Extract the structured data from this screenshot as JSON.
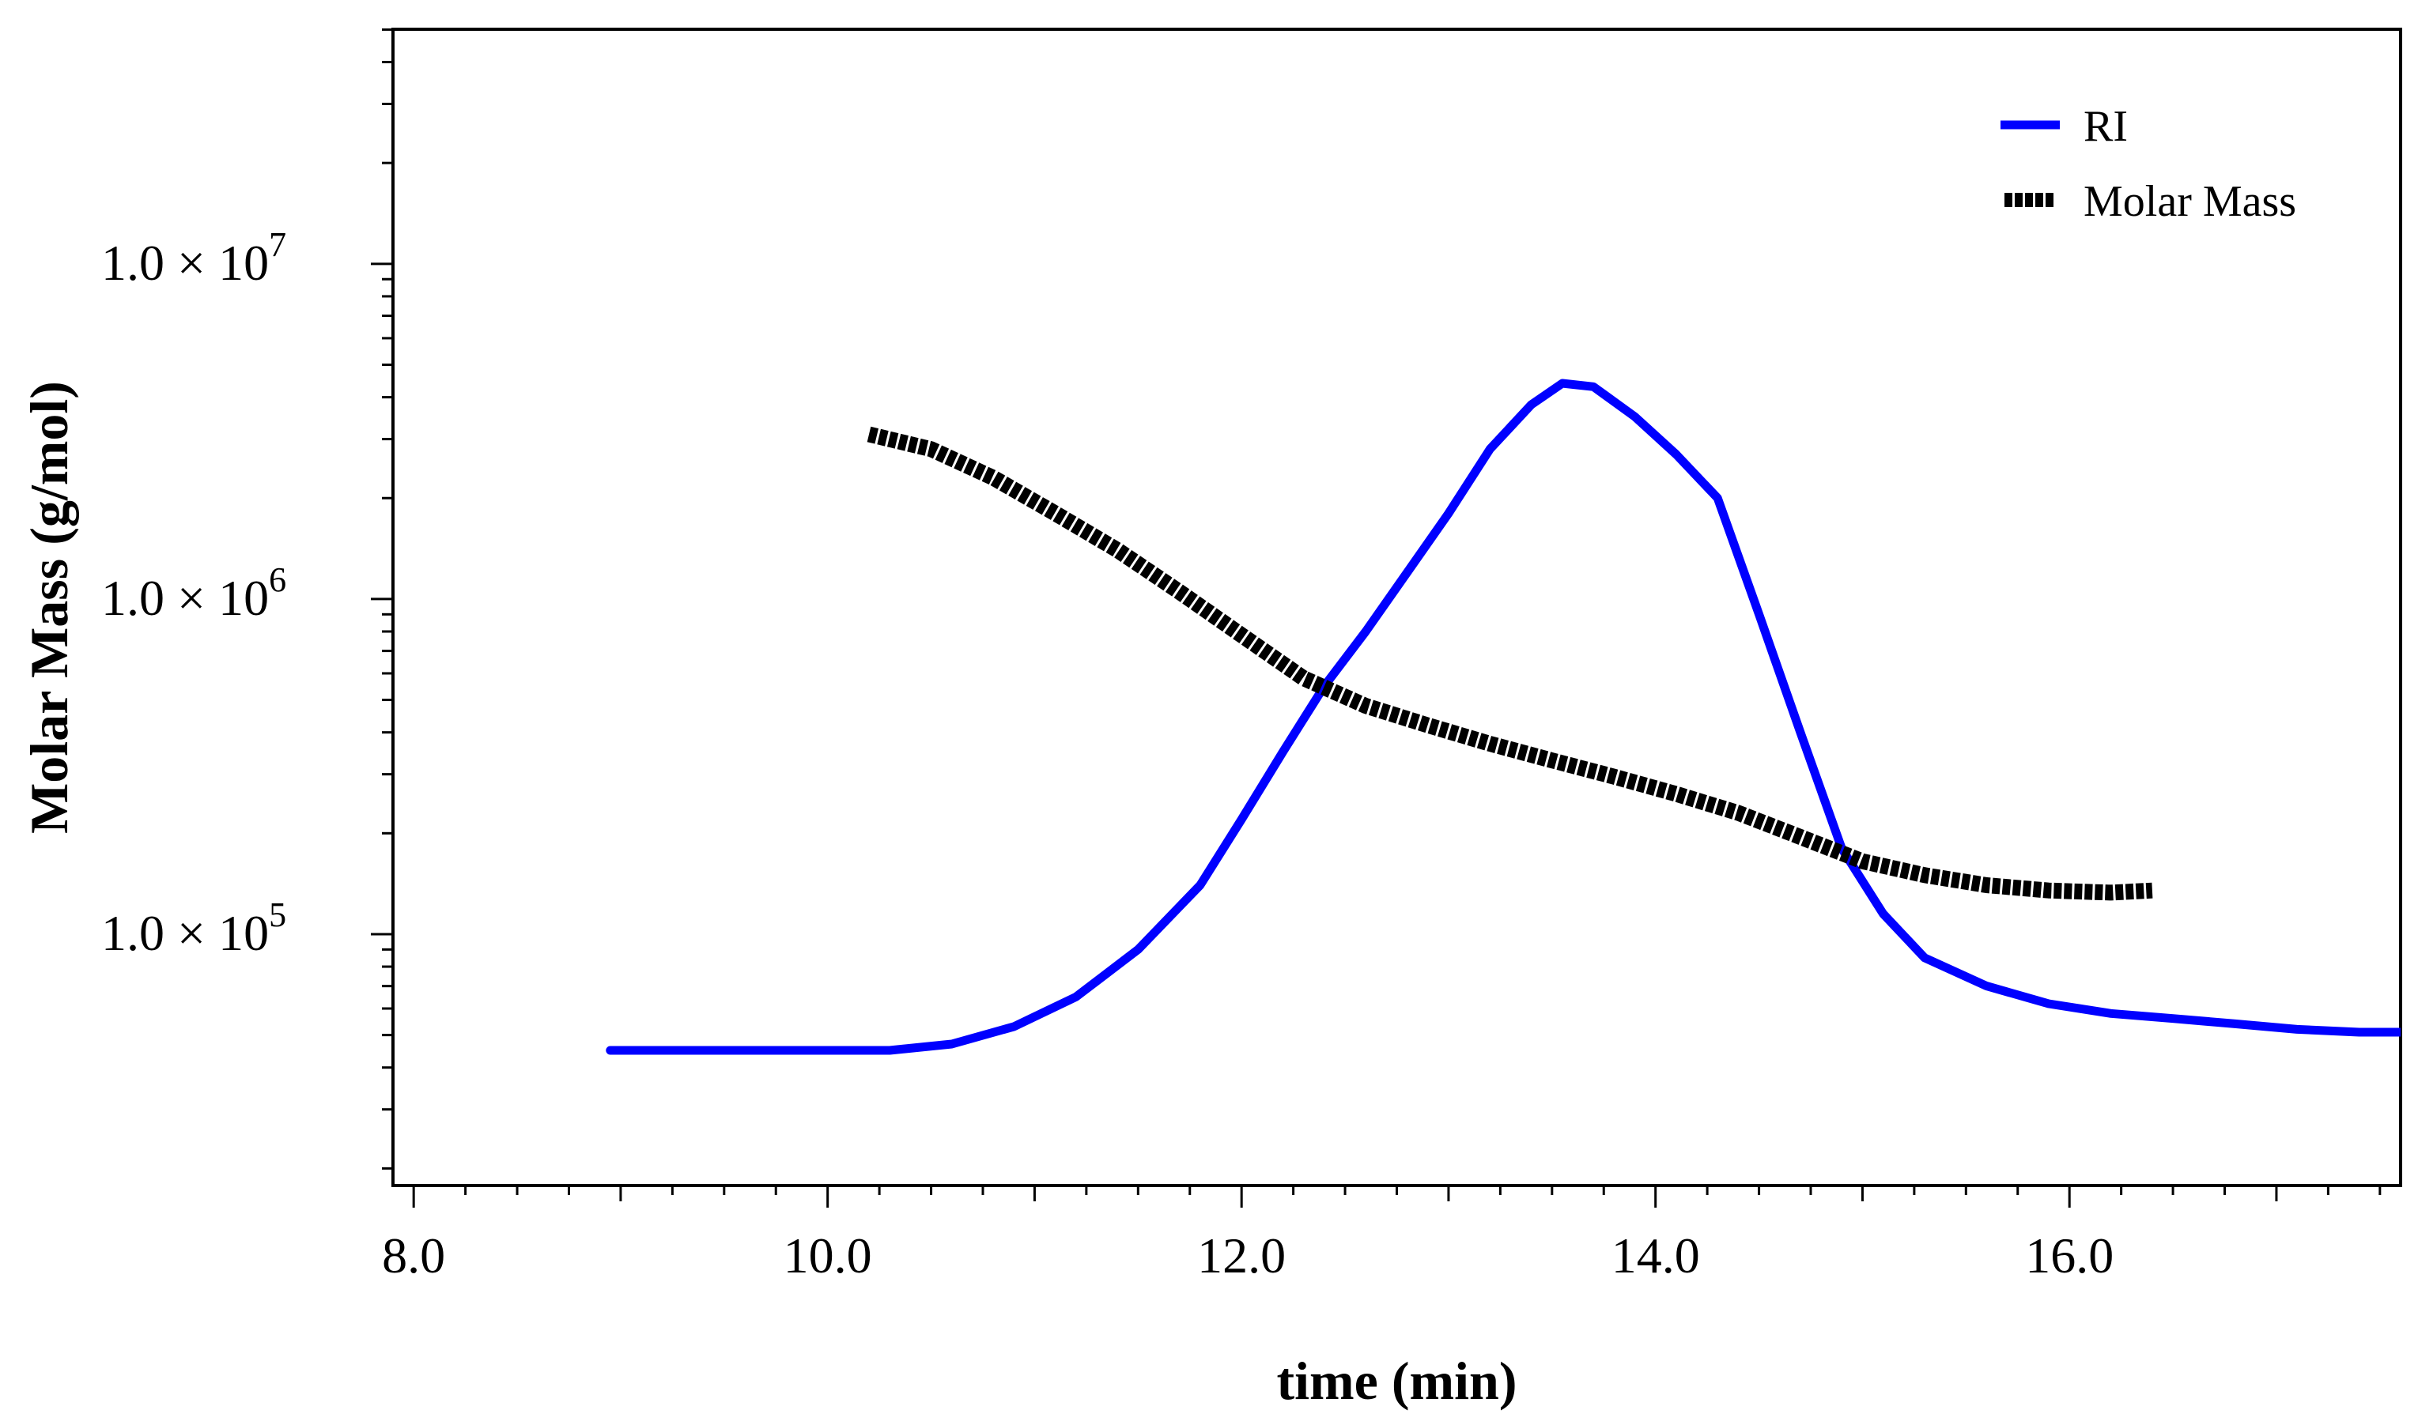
{
  "chart_data": {
    "type": "line",
    "title": "",
    "xlabel": "time (min)",
    "ylabel": "Molar Mass (g/mol)",
    "xlim": [
      7.9,
      17.6
    ],
    "ylim_log10": [
      4.25,
      7.7
    ],
    "yscale": "log",
    "x_ticks": [
      8,
      10,
      12,
      14,
      16
    ],
    "x_tick_labels": [
      "8.0",
      "10.0",
      "12.0",
      "14.0",
      "16.0"
    ],
    "y_ticks": [
      100000,
      1000000,
      10000000
    ],
    "y_tick_labels": [
      {
        "mantissa": "1.0",
        "times": "×",
        "base": "10",
        "exp": "5"
      },
      {
        "mantissa": "1.0",
        "times": "×",
        "base": "10",
        "exp": "6"
      },
      {
        "mantissa": "1.0",
        "times": "×",
        "base": "10",
        "exp": "7"
      }
    ],
    "grid": false,
    "legend_position": "top-right",
    "series": [
      {
        "name": "RI",
        "color": "#0000ff",
        "style": "solid",
        "unit_note": "detector signal plotted in molar-mass axis units",
        "x": [
          8.95,
          10.3,
          10.6,
          10.9,
          11.2,
          11.5,
          11.8,
          12.0,
          12.2,
          12.4,
          12.6,
          12.8,
          13.0,
          13.2,
          13.4,
          13.55,
          13.7,
          13.9,
          14.1,
          14.3,
          14.5,
          14.7,
          14.9,
          15.1,
          15.3,
          15.6,
          15.9,
          16.2,
          16.5,
          16.8,
          17.1,
          17.4,
          17.6
        ],
        "y": [
          45000,
          45000,
          47000,
          53000,
          65000,
          90000,
          140000,
          220000,
          350000,
          550000,
          800000,
          1200000,
          1800000,
          2800000,
          3800000,
          4400000,
          4300000,
          3500000,
          2700000,
          2000000,
          900000,
          400000,
          180000,
          115000,
          85000,
          70000,
          62000,
          58000,
          56000,
          54000,
          52000,
          51000,
          51000
        ]
      },
      {
        "name": "Molar Mass",
        "color": "#000000",
        "style": "dotted-thick",
        "x": [
          10.2,
          10.5,
          10.8,
          11.1,
          11.4,
          11.7,
          12.0,
          12.3,
          12.6,
          12.9,
          13.2,
          13.5,
          13.8,
          14.1,
          14.4,
          14.7,
          15.0,
          15.3,
          15.6,
          15.9,
          16.2,
          16.4
        ],
        "y": [
          3100000,
          2800000,
          2300000,
          1800000,
          1400000,
          1050000,
          780000,
          580000,
          480000,
          420000,
          370000,
          330000,
          295000,
          262000,
          230000,
          195000,
          165000,
          150000,
          140000,
          135000,
          133000,
          135000
        ]
      }
    ]
  }
}
